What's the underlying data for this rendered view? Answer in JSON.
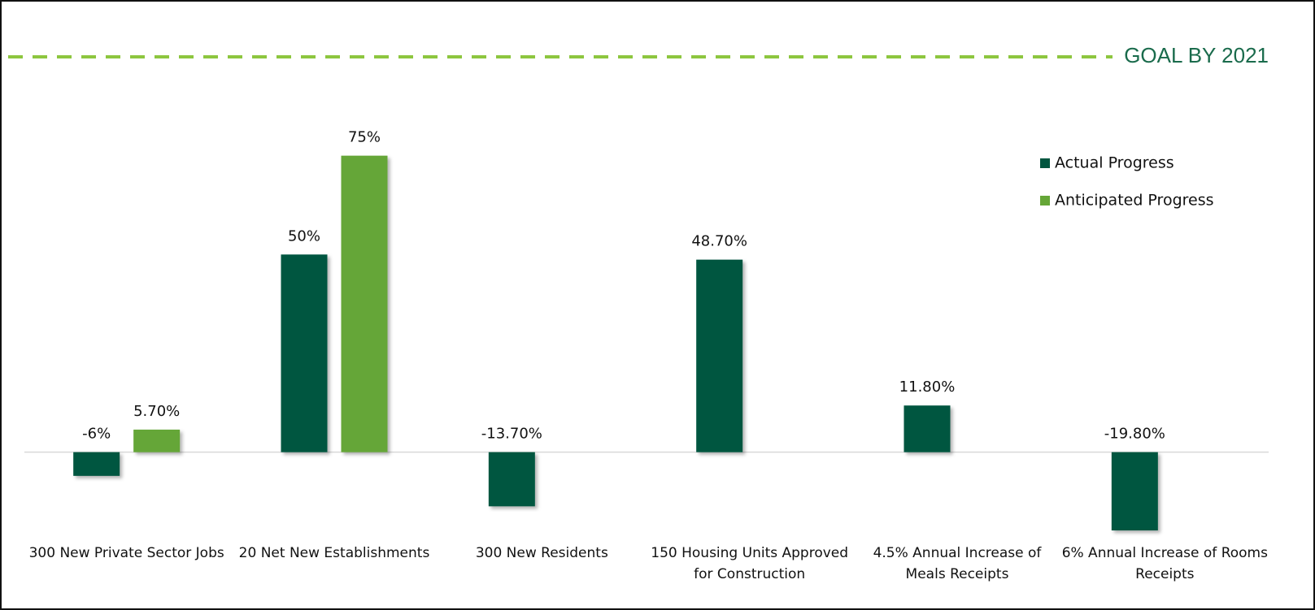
{
  "chart_data": {
    "type": "bar",
    "categories": [
      "300 New Private Sector Jobs",
      "20 Net New Establishments",
      "300 New Residents",
      "150 Housing Units Approved for Construction",
      "4.5% Annual Increase of Meals Receipts",
      "6% Annual Increase of Rooms Receipts"
    ],
    "series": [
      {
        "name": "Actual Progress",
        "color": "#00563f",
        "values": [
          -6,
          50,
          -13.7,
          48.7,
          11.8,
          -19.8
        ],
        "value_labels": [
          "-6%",
          "50%",
          "-13.70%",
          "48.70%",
          "11.80%",
          "-19.80%"
        ]
      },
      {
        "name": "Anticipated Progress",
        "color": "#65a637",
        "values": [
          5.7,
          75,
          null,
          null,
          null,
          null
        ],
        "value_labels": [
          "5.70%",
          "75%",
          null,
          null,
          null,
          null
        ]
      }
    ],
    "goal": {
      "value": 100,
      "label": "GOAL BY 2021",
      "color": "#8dc63f"
    },
    "ylim": [
      -20,
      100
    ],
    "legend": "top-right"
  }
}
